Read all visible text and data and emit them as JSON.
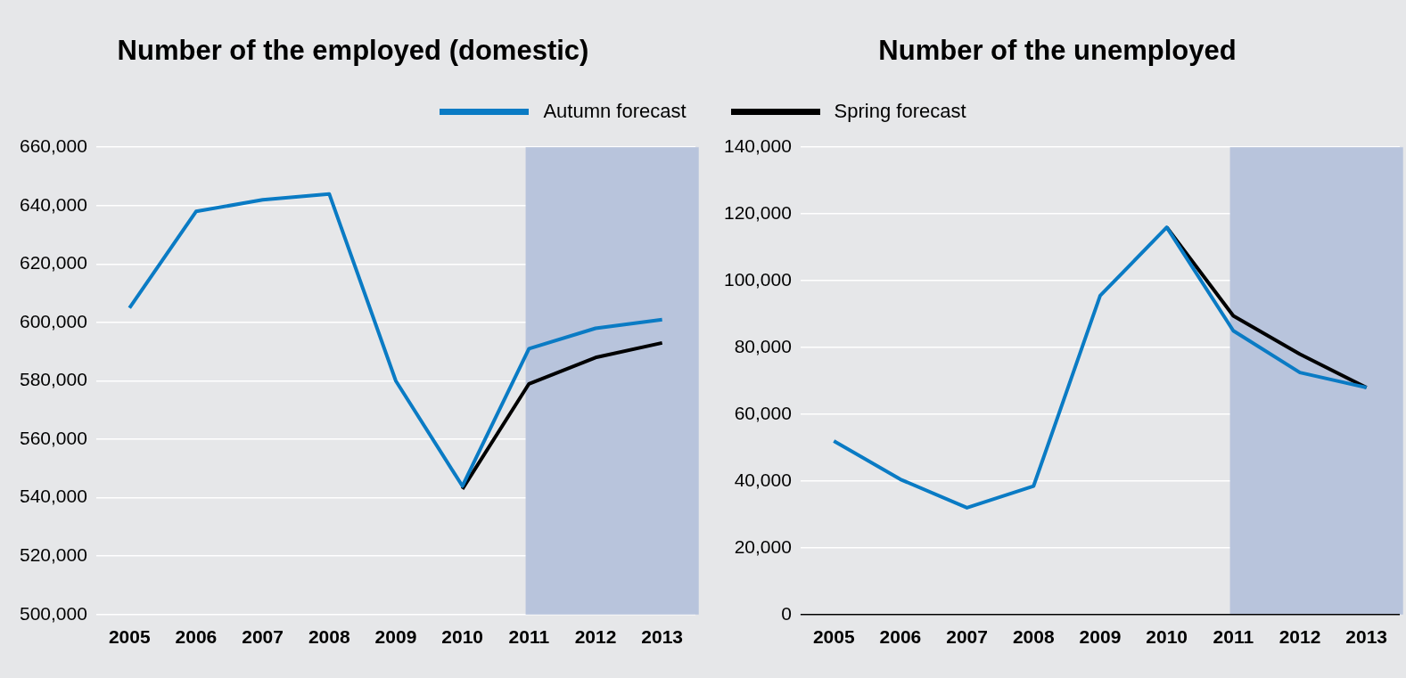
{
  "chart_data": [
    {
      "type": "line",
      "title": "Number of the employed (domestic)",
      "categories": [
        "2005",
        "2006",
        "2007",
        "2008",
        "2009",
        "2010",
        "2011",
        "2012",
        "2013"
      ],
      "series": [
        {
          "name": "Autumn forecast",
          "color": "#0a7bc4",
          "values": [
            605000,
            638000,
            642000,
            644000,
            580000,
            544000,
            591000,
            598000,
            601000
          ]
        },
        {
          "name": "Spring forecast",
          "color": "#000000",
          "values": [
            null,
            null,
            null,
            null,
            null,
            543000,
            579000,
            588000,
            593000
          ]
        }
      ],
      "ylim": [
        500000,
        660000
      ],
      "yticks": [
        {
          "value": 500000,
          "label": "500,000"
        },
        {
          "value": 520000,
          "label": "520,000"
        },
        {
          "value": 540000,
          "label": "540,000"
        },
        {
          "value": 560000,
          "label": "560,000"
        },
        {
          "value": 580000,
          "label": "580,000"
        },
        {
          "value": 600000,
          "label": "600,000"
        },
        {
          "value": 620000,
          "label": "620,000"
        },
        {
          "value": 640000,
          "label": "640,000"
        },
        {
          "value": 660000,
          "label": "660,000"
        }
      ],
      "grid": "y",
      "legend": "top",
      "bands": [
        {
          "axis": "x",
          "from": "2011",
          "to": "2013",
          "color": "#b8c4dc"
        }
      ]
    },
    {
      "type": "line",
      "title": "Number of the unemployed",
      "categories": [
        "2005",
        "2006",
        "2007",
        "2008",
        "2009",
        "2010",
        "2011",
        "2012",
        "2013"
      ],
      "series": [
        {
          "color": "#0a7bc4",
          "values": [
            52000,
            40500,
            32000,
            38500,
            95500,
            116000,
            85000,
            72500,
            68000
          ]
        },
        {
          "color": "#000000",
          "values": [
            null,
            null,
            null,
            null,
            null,
            116000,
            89500,
            78000,
            68000
          ]
        }
      ],
      "ylim": [
        0,
        140000
      ],
      "yticks": [
        0,
        {
          "value": 20000,
          "label": "20,000"
        },
        {
          "value": 40000,
          "label": "40,000"
        },
        {
          "value": 60000,
          "label": "60,000"
        },
        {
          "value": 80000,
          "label": "80,000"
        },
        {
          "value": 100000,
          "label": "100,000"
        },
        {
          "value": 120000,
          "label": "120,000"
        },
        {
          "value": 140000,
          "label": "140,000"
        }
      ],
      "grid": "y",
      "bands": [
        {
          "axis": "x",
          "from": "2011",
          "to": "2013",
          "color": "#b8c4dc"
        }
      ]
    }
  ]
}
